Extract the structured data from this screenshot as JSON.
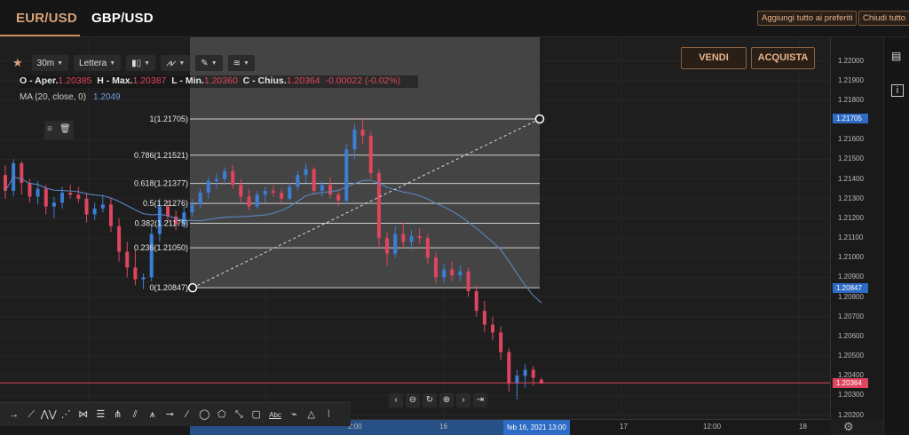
{
  "tabs": [
    {
      "label": "EUR/USD",
      "active": true
    },
    {
      "label": "GBP/USD",
      "active": false
    }
  ],
  "top_buttons": {
    "add_favorites": "Aggiungi tutto ai preferiti",
    "close_all": "Chiudi tutto"
  },
  "toolbar": {
    "interval": "30m",
    "price_type": "Lettera",
    "icons": [
      "star-icon",
      "candles-icon",
      "indicators-icon",
      "drawing-icon",
      "layers-icon"
    ]
  },
  "ohlc": {
    "open_label": "O - Aper.",
    "open": "1.20385",
    "high_label": "H - Max.",
    "high": "1.20387",
    "low_label": "L - Min.",
    "low": "1.20360",
    "close_label": "C - Chius.",
    "close": "1.20364",
    "change": "-0.00022 (-0.02%)"
  },
  "indicator": {
    "label": "MA (20, close, 0)",
    "value": "1.2049"
  },
  "trade": {
    "sell": "VENDI",
    "buy": "ACQUISTA"
  },
  "fibonacci": [
    {
      "level": "1",
      "price": "1.21705",
      "label": "1(1.21705)"
    },
    {
      "level": "0.786",
      "price": "1.21521",
      "label": "0.786(1.21521)"
    },
    {
      "level": "0.618",
      "price": "1.21377",
      "label": "0.618(1.21377)"
    },
    {
      "level": "0.5",
      "price": "1.21276",
      "label": "0.5(1.21276)"
    },
    {
      "level": "0.382",
      "price": "1.21175",
      "label": "0.382(1.21175)"
    },
    {
      "level": "0.236",
      "price": "1.21050",
      "label": "0.236(1.21050)"
    },
    {
      "level": "0",
      "price": "1.20847",
      "label": "0(1.20847)"
    }
  ],
  "price_axis": [
    "1.22000",
    "1.21900",
    "1.21800",
    "1.21600",
    "1.21500",
    "1.21400",
    "1.21300",
    "1.21200",
    "1.21100",
    "1.21000",
    "1.20900",
    "1.20800",
    "1.20700",
    "1.20600",
    "1.20500",
    "1.20400",
    "1.20300",
    "1.20200"
  ],
  "price_tags": {
    "fib_high": "1.21705",
    "fib_low": "1.20847",
    "current": "1.20364"
  },
  "time_axis": {
    "labels": [
      "2:00",
      "16",
      "17",
      "12:00",
      "18"
    ],
    "cursor": "feb 16, 2021   13:00"
  },
  "nav_controls": [
    "chevron-left-icon",
    "zoom-out-icon",
    "reset-icon",
    "zoom-in-icon",
    "chevron-right-icon",
    "end-icon"
  ],
  "draw_tools": [
    "arrow-icon",
    "trendline-icon",
    "abcd-icon",
    "xabcd-icon",
    "head-shoulders-icon",
    "fib-grid-icon",
    "pitchfork-icon",
    "gann-fan-icon",
    "elliott-icon",
    "horizontal-ray-icon",
    "line-icon",
    "circle-icon",
    "polygon-icon",
    "measure-icon",
    "rectangle-icon",
    "text-icon",
    "path-icon",
    "triangle-icon",
    "vertical-line-icon"
  ],
  "draw_text_tool": "Abc",
  "colors": {
    "up": "#3c7dd6",
    "down": "#e0455f",
    "ma": "#5a86c4",
    "accent": "#d9a27a"
  },
  "chart_data": {
    "type": "candlestick",
    "symbol": "EUR/USD",
    "interval": "30m",
    "ylim": [
      1.2018,
      1.2212
    ],
    "ma_label": "MA (20, close, 0)",
    "candles": [
      [
        1.2142,
        1.2147,
        1.213,
        1.2134
      ],
      [
        1.2134,
        1.215,
        1.2131,
        1.2148
      ],
      [
        1.2148,
        1.2149,
        1.2132,
        1.2138
      ],
      [
        1.2138,
        1.214,
        1.2128,
        1.2131
      ],
      [
        1.2131,
        1.2139,
        1.2127,
        1.2135
      ],
      [
        1.2135,
        1.2137,
        1.2122,
        1.2126
      ],
      [
        1.2126,
        1.2131,
        1.212,
        1.2128
      ],
      [
        1.2128,
        1.2136,
        1.2125,
        1.2133
      ],
      [
        1.2133,
        1.2137,
        1.213,
        1.2132
      ],
      [
        1.2132,
        1.2136,
        1.2128,
        1.213
      ],
      [
        1.213,
        1.2133,
        1.2118,
        1.2122
      ],
      [
        1.2122,
        1.2128,
        1.2119,
        1.2125
      ],
      [
        1.2125,
        1.2132,
        1.2123,
        1.2127
      ],
      [
        1.2127,
        1.213,
        1.2113,
        1.2116
      ],
      [
        1.2116,
        1.212,
        1.2098,
        1.2103
      ],
      [
        1.2103,
        1.2108,
        1.209,
        1.2095
      ],
      [
        1.2095,
        1.2104,
        1.2086,
        1.2089
      ],
      [
        1.2089,
        1.2092,
        1.2084,
        1.209
      ],
      [
        1.209,
        1.2116,
        1.2088,
        1.2112
      ],
      [
        1.2112,
        1.213,
        1.2108,
        1.2126
      ],
      [
        1.2126,
        1.2129,
        1.2118,
        1.2121
      ],
      [
        1.2121,
        1.2124,
        1.2114,
        1.2117
      ],
      [
        1.2117,
        1.2126,
        1.2115,
        1.2123
      ],
      [
        1.2123,
        1.213,
        1.2121,
        1.2127
      ],
      [
        1.2127,
        1.2135,
        1.2125,
        1.2133
      ],
      [
        1.2133,
        1.2141,
        1.213,
        1.2139
      ],
      [
        1.2139,
        1.2143,
        1.2135,
        1.214
      ],
      [
        1.214,
        1.2146,
        1.2137,
        1.2144
      ],
      [
        1.2144,
        1.2147,
        1.2135,
        1.2137
      ],
      [
        1.2137,
        1.214,
        1.2128,
        1.2131
      ],
      [
        1.2131,
        1.2135,
        1.2124,
        1.2126
      ],
      [
        1.2126,
        1.2134,
        1.2125,
        1.2132
      ],
      [
        1.2132,
        1.2136,
        1.2128,
        1.2134
      ],
      [
        1.2134,
        1.2137,
        1.2131,
        1.2133
      ],
      [
        1.2133,
        1.2135,
        1.2128,
        1.213
      ],
      [
        1.213,
        1.2138,
        1.2129,
        1.2136
      ],
      [
        1.2136,
        1.2144,
        1.2134,
        1.2142
      ],
      [
        1.2142,
        1.2148,
        1.2138,
        1.2145
      ],
      [
        1.2145,
        1.2146,
        1.2132,
        1.2134
      ],
      [
        1.2134,
        1.2139,
        1.2131,
        1.2137
      ],
      [
        1.2137,
        1.2141,
        1.213,
        1.2132
      ],
      [
        1.2132,
        1.2134,
        1.2126,
        1.2129
      ],
      [
        1.2129,
        1.2158,
        1.2127,
        1.2155
      ],
      [
        1.2155,
        1.2168,
        1.215,
        1.2165
      ],
      [
        1.2165,
        1.2171,
        1.2158,
        1.2162
      ],
      [
        1.2162,
        1.2164,
        1.214,
        1.2143
      ],
      [
        1.2143,
        1.2145,
        1.2105,
        1.211
      ],
      [
        1.211,
        1.2113,
        1.2096,
        1.2102
      ],
      [
        1.2102,
        1.2116,
        1.21,
        1.2112
      ],
      [
        1.2112,
        1.2118,
        1.2105,
        1.2108
      ],
      [
        1.2108,
        1.2114,
        1.2104,
        1.2111
      ],
      [
        1.2111,
        1.2115,
        1.2107,
        1.211
      ],
      [
        1.211,
        1.2112,
        1.2097,
        1.21
      ],
      [
        1.21,
        1.2103,
        1.2087,
        1.209
      ],
      [
        1.209,
        1.2097,
        1.2087,
        1.2094
      ],
      [
        1.2094,
        1.2098,
        1.2088,
        1.2091
      ],
      [
        1.2091,
        1.2096,
        1.2088,
        1.2093
      ],
      [
        1.2093,
        1.2095,
        1.208,
        1.2083
      ],
      [
        1.2083,
        1.2086,
        1.207,
        1.2073
      ],
      [
        1.2073,
        1.2078,
        1.2062,
        1.2066
      ],
      [
        1.2066,
        1.207,
        1.2058,
        1.2062
      ],
      [
        1.2062,
        1.2065,
        1.2048,
        1.2052
      ],
      [
        1.2052,
        1.2054,
        1.2032,
        1.2036
      ],
      [
        1.2036,
        1.2043,
        1.2028,
        1.204
      ],
      [
        1.204,
        1.2046,
        1.2034,
        1.2043
      ],
      [
        1.2043,
        1.2045,
        1.2035,
        1.2039
      ],
      [
        1.2038,
        1.2039,
        1.2036,
        1.2036
      ]
    ]
  }
}
